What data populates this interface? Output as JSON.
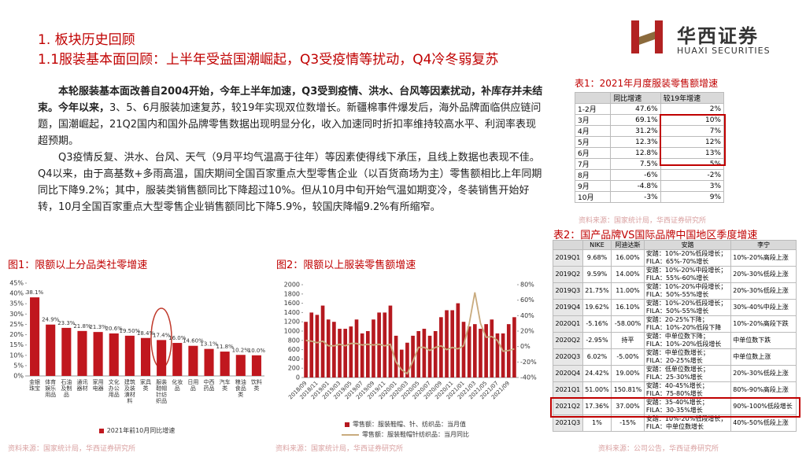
{
  "header": {
    "section": "1. 板块历史回顾",
    "title": "1.1服装基本面回顾：上半年受益国潮崛起，Q3受疫情等扰动，Q4冷冬弱复苏",
    "logo_cn": "华西证券",
    "logo_en": "HUAXI SECURITIES"
  },
  "body": {
    "paragraphs": [
      {
        "bold": "本轮服装基本面改善自2004开始，今年上半年加速，Q3受到疫情、洪水、台风等因素扰动，补库存并未结束。今年以来，",
        "text": "3、5、6月服装加速复苏，较19年实现双位数增长。新疆棉事件爆发后，海外品牌面临供应链问题，国潮崛起，21Q2国内和国外品牌零售数据出现明显分化，收入加速同时折扣率维持较高水平、利润率表现超预期。"
      },
      {
        "text": "Q3疫情反复、洪水、台风、天气（9月平均气温高于往年）等因素使得线下承压，且线上数据也表现不佳。Q4以来，由于高基数+多雨高温，国庆期间全国百家重点大型零售企业（以百货商场为主）零售额相比上年同期同比下降9.2%；其中，服装类销售额同比下降超过10%。但从10月中旬开始气温如期变冷，冬装销售开始好转，10月全国百家重点大型零售企业销售额同比下降5.9%，较国庆降幅9.2%有所缩窄。"
      }
    ]
  },
  "table_1": {
    "title": "表1：2021年月度服装零售额增速",
    "headers": [
      "同比增速",
      "较19年增速"
    ],
    "rows": [
      [
        "1-2月",
        "47.6%",
        "2%"
      ],
      [
        "3月",
        "69.1%",
        "10%"
      ],
      [
        "4月",
        "31.2%",
        "7%"
      ],
      [
        "5月",
        "12.3%",
        "12%"
      ],
      [
        "6月",
        "12.8%",
        "13%"
      ],
      [
        "7月",
        "7.5%",
        "5%"
      ],
      [
        "8月",
        "-6%",
        "-2%"
      ],
      [
        "9月",
        "-4.8%",
        "3%"
      ],
      [
        "10月",
        "-3%",
        "9%"
      ]
    ],
    "source": "资料来源：国家统计局，华西证券研究所"
  },
  "table_2": {
    "title": "表2：国产品牌VS国际品牌中国地区季度增速",
    "headers": [
      "NIKE",
      "阿迪达斯",
      "安踏",
      "李宁"
    ],
    "rows": [
      [
        "2019Q1",
        "9.68%",
        "16.00%",
        [
          "安踏：10%-20%低段增长；",
          "FILA：65%-70%增长"
        ],
        "10%-20%高段上涨"
      ],
      [
        "2019Q2",
        "9.59%",
        "14.00%",
        [
          "安踏：10%-20%中段增长；",
          "FILA：55%-60%增长"
        ],
        "20%-30%低段上涨"
      ],
      [
        "2019Q3",
        "21.75%",
        "11.00%",
        [
          "安踏：10%-20%中段增长；",
          "FILA：50%-55%增长"
        ],
        "20%-30%低段上涨"
      ],
      [
        "2019Q4",
        "19.62%",
        "16.10%",
        [
          "安踏：10%-20%低段增长；",
          "FILA：50%-55%增长"
        ],
        "30%-40%中段上涨"
      ],
      [
        "2020Q1",
        "-5.16%",
        "-58.00%",
        [
          "安踏：20-25%下降；",
          "FILA：10%-20%低段下降"
        ],
        "10%-20%高段下跌"
      ],
      [
        "2020Q2",
        "-2.95%",
        "持平",
        [
          "安踏：中单位数下降；",
          "FILA：10%-20%低段增长"
        ],
        "中单位数下跌"
      ],
      [
        "2020Q3",
        "6.02%",
        "-5.00%",
        [
          "安踏：中单位数增长；",
          "FILA：20-25%增长"
        ],
        "中单位数上涨"
      ],
      [
        "2020Q4",
        "24.42%",
        "19.00%",
        [
          "安踏：低单位数增长；",
          "FILA：25-30%增长"
        ],
        "20%-30%低段上涨"
      ],
      [
        "2021Q1",
        "51.00%",
        "150.81%",
        [
          "安踏：40-45%增长；",
          "FILA：75-80%增长"
        ],
        "80%-90%高段上涨"
      ],
      [
        "2021Q2",
        "17.36%",
        "37.00%",
        [
          "安踏：35-40%增长；",
          "FILA：30-35%增长"
        ],
        "90%-100%低段增长"
      ],
      [
        "2021Q3",
        "1%",
        "-15%",
        [
          "安踏：10%-20%低段增长；",
          "FILA：中单位数增长"
        ],
        "40%-50%低段上涨"
      ]
    ],
    "source": "资料来源：公司公告，华西证券研究所"
  },
  "chart_data": [
    {
      "type": "bar",
      "title": "图1：限额以上分品类社零增速",
      "categories": [
        "金银珠宝",
        "体育娱乐用品",
        "石油及制品",
        "通讯器材",
        "家用电器",
        "文化办公用品",
        "建筑及装潢材料",
        "家具类",
        "服装鞋帽针纺织品",
        "化妆品",
        "日用品",
        "中西药品",
        "汽车类",
        "粮油食品类",
        "饮料类"
      ],
      "series": [
        {
          "name": "2021年前10月同比增速",
          "color": "#c0171e",
          "values": [
            38.1,
            24.9,
            23.3,
            21.8,
            21.3,
            20.6,
            19.5,
            18.4,
            17.4,
            16.0,
            14.6,
            13.1,
            11.8,
            10.2,
            10.0
          ],
          "value_labels": [
            "38.1%",
            "24.9%",
            "23.3%",
            "21.8%",
            "21.3%",
            "20.6%",
            "19.50%",
            "18.4%",
            "17.4%",
            "16.0%",
            "14.60%",
            "13.1%",
            "11.8%",
            "10.2%",
            "10.0%"
          ]
        }
      ],
      "ylim": [
        0,
        45
      ],
      "yticks": [
        {
          "value": 0,
          "label": "0%"
        },
        {
          "value": 5,
          "label": "5%"
        },
        {
          "value": 10,
          "label": "10%"
        },
        {
          "value": 15,
          "label": "15%"
        },
        {
          "value": 20,
          "label": "20%"
        },
        {
          "value": 25,
          "label": "25%"
        },
        {
          "value": 30,
          "label": "30%"
        },
        {
          "value": 35,
          "label": "35%"
        },
        {
          "value": 40,
          "label": "40%"
        },
        {
          "value": 45,
          "label": "45%"
        }
      ],
      "legend": "bottom",
      "source": "资料来源：国家统计局，华西证券研究所"
    },
    {
      "type": "combo",
      "title": "图2：限额以上服装零售额增速",
      "categories": [
        "2018/09",
        null,
        "2018/11",
        null,
        "2019/01",
        null,
        "2019/03",
        null,
        "2019/05",
        null,
        "2019/07",
        null,
        "2019/09",
        null,
        "2019/11",
        null,
        "2020/01",
        null,
        "2020/03",
        null,
        "2020/05",
        null,
        "2020/07",
        null,
        "2020/09",
        null,
        "2020/11",
        null,
        "2021/01",
        null,
        "2021/03",
        null,
        "2021/05",
        null,
        "2021/07",
        null,
        "2021/09",
        null
      ],
      "series": [
        {
          "name": "零售额：服装鞋帽、针、纺织品：当月值",
          "color": "#b5191f",
          "type": "bar",
          "values": [
            1200,
            1400,
            1350,
            1550,
            1250,
            1200,
            1050,
            1050,
            1100,
            1250,
            950,
            1000,
            1250,
            1400,
            1400,
            1550,
            900,
            600,
            750,
            900,
            1000,
            1050,
            900,
            1000,
            1300,
            1450,
            1450,
            1600,
            1200,
            1100,
            1150,
            1050,
            1150,
            1250,
            950,
            950,
            1150,
            1300
          ]
        },
        {
          "name": "零售额：服装鞋帽针纺织品：当月同比",
          "color": "#c9ab7e",
          "type": "line",
          "axis": "y2",
          "values": [
            8,
            7,
            5,
            7,
            1,
            1,
            3,
            1,
            4,
            4,
            2,
            3,
            2,
            3,
            1,
            3,
            -20,
            -30,
            -35,
            -19,
            -1,
            -1,
            -5,
            -1,
            1,
            -4,
            -1,
            -3,
            1,
            30,
            70,
            30,
            12,
            13,
            8,
            -6,
            -5,
            -3
          ]
        }
      ],
      "ylim": [
        0,
        2000
      ],
      "yticks": [
        0,
        200,
        400,
        600,
        800,
        1000,
        1200,
        1400,
        1600,
        1800,
        2000
      ],
      "y2lim": [
        -40,
        80
      ],
      "y2ticks": [
        {
          "value": -40,
          "label": "-40%"
        },
        {
          "value": -20,
          "label": "-20%"
        },
        {
          "value": 0,
          "label": "0%"
        },
        {
          "value": 20,
          "label": "20%"
        },
        {
          "value": 40,
          "label": "40%"
        },
        {
          "value": 60,
          "label": "60%"
        },
        {
          "value": 80,
          "label": "80%"
        }
      ],
      "legend": "bottom",
      "source": "资料来源：国家统计局，华西证券研究所"
    }
  ]
}
